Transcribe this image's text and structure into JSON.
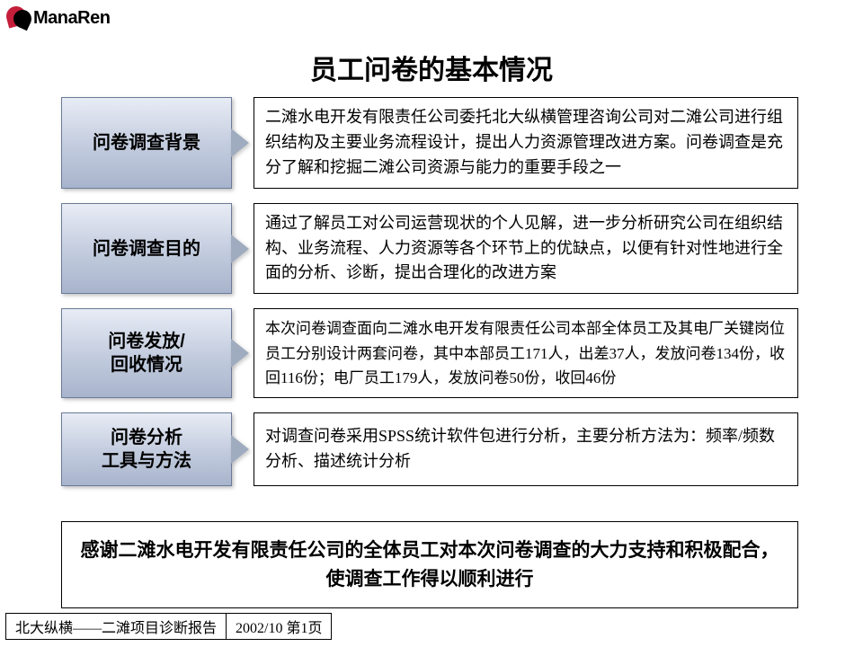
{
  "logo": {
    "text": "ManaRen"
  },
  "title": "员工问卷的基本情况",
  "sections": [
    {
      "label": "问卷调查背景",
      "desc": "二滩水电开发有限责任公司委托北大纵横管理咨询公司对二滩公司进行组织结构及主要业务流程设计，提出人力资源管理改进方案。问卷调查是充分了解和挖掘二滩公司资源与能力的重要手段之一"
    },
    {
      "label": "问卷调查目的",
      "desc": "通过了解员工对公司运营现状的个人见解，进一步分析研究公司在组织结构、业务流程、人力资源等各个环节上的优缺点，以便有针对性地进行全面的分析、诊断，提出合理化的改进方案"
    },
    {
      "label": "问卷发放/\n回收情况",
      "desc": "本次问卷调查面向二滩水电开发有限责任公司本部全体员工及其电厂关键岗位员工分别设计两套问卷，其中本部员工171人，出差37人，发放问卷134份，收回116份；电厂员工179人，发放问卷50份，收回46份"
    },
    {
      "label": "问卷分析\n工具与方法",
      "desc": "对调查问卷采用SPSS统计软件包进行分析，主要分析方法为：频率/频数分析、描述统计分析"
    }
  ],
  "thanks": "感谢二滩水电开发有限责任公司的全体员工对本次问卷调查的大力支持和积极配合，使调查工作得以顺利进行",
  "footer": {
    "left": "北大纵横——二滩项目诊断报告",
    "right": "2002/10 第1页"
  },
  "colors": {
    "label_gradient_top": "#e8ecf5",
    "label_gradient_mid": "#c5cee0",
    "label_gradient_bot": "#a8b4cc",
    "label_border": "#6b7a99",
    "arrow_fill": "#9fabbf",
    "border": "#000000",
    "background": "#ffffff"
  }
}
